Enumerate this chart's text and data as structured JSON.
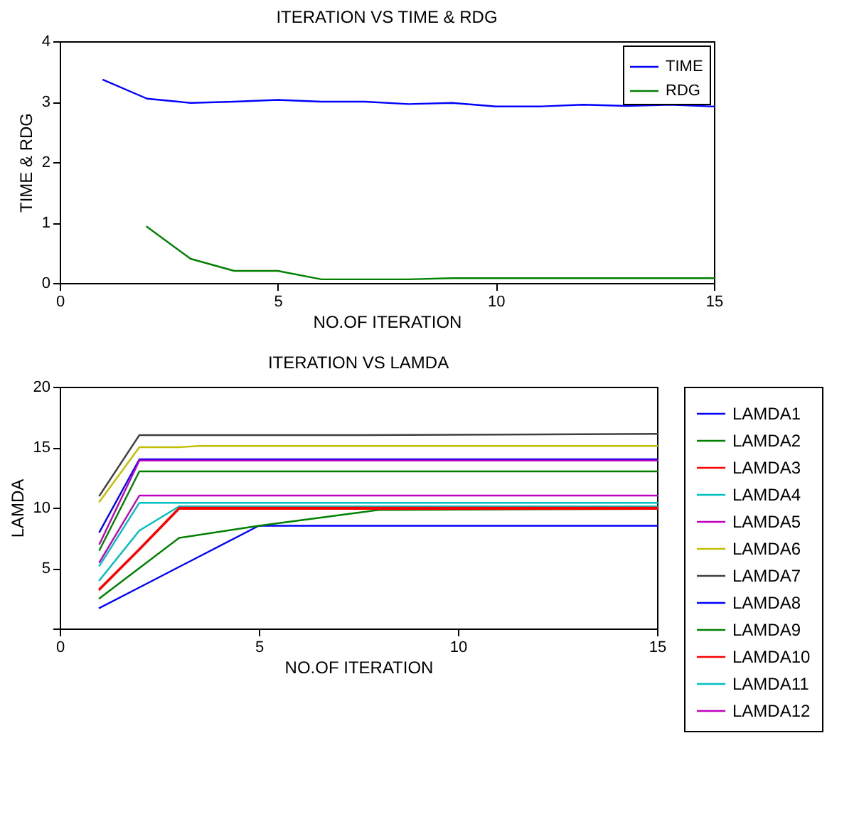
{
  "chart_data": [
    {
      "type": "line",
      "title": "ITERATION VS TIME & RDG",
      "xlabel": "NO.OF ITERATION",
      "ylabel": "TIME & RDG",
      "xlim": [
        0,
        15
      ],
      "xticks": [
        0,
        5,
        10,
        15
      ],
      "ylim": [
        0,
        4
      ],
      "yticks": [
        0,
        1,
        2,
        3,
        4
      ],
      "grid": false,
      "legend": "top right",
      "series": [
        {
          "name": "TIME",
          "color": "#0000ff",
          "x": [
            1,
            2,
            3,
            4,
            5,
            6,
            7,
            8,
            9,
            10,
            11,
            12,
            13,
            14,
            15
          ],
          "values": [
            3.36,
            3.05,
            2.98,
            3.0,
            3.03,
            3.0,
            3.0,
            2.96,
            2.98,
            2.92,
            2.92,
            2.95,
            2.93,
            2.95,
            2.92
          ]
        },
        {
          "name": "RDG",
          "color": "#008000",
          "x": [
            2,
            3,
            4,
            5,
            6,
            7,
            8,
            9,
            10,
            11,
            12,
            13,
            14,
            15
          ],
          "values": [
            0.93,
            0.4,
            0.2,
            0.2,
            0.06,
            0.06,
            0.06,
            0.08,
            0.08,
            0.08,
            0.08,
            0.08,
            0.08,
            0.08
          ]
        }
      ]
    },
    {
      "type": "line",
      "title": "ITERATION VS LAMDA",
      "xlabel": "NO.OF ITERATION",
      "ylabel": "LAMDA",
      "xlim": [
        0,
        15
      ],
      "xticks": [
        0,
        5,
        10,
        15
      ],
      "ylim": [
        0,
        20
      ],
      "yticks": [
        {
          "value": 0,
          "label": null
        },
        5,
        10,
        15,
        20
      ],
      "grid": false,
      "legend": "right",
      "series": [
        {
          "name": "LAMDA1",
          "color": "#0000ff",
          "x": [
            1,
            2,
            3,
            5,
            15
          ],
          "values": [
            1.7,
            3.4,
            5.1,
            8.5,
            8.5
          ]
        },
        {
          "name": "LAMDA2",
          "color": "#008000",
          "x": [
            1,
            2,
            3,
            5,
            8,
            15
          ],
          "values": [
            2.5,
            5,
            7.5,
            8.5,
            9.8,
            9.9
          ]
        },
        {
          "name": "LAMDA3",
          "color": "#ff0000",
          "x": [
            1,
            2,
            3,
            15
          ],
          "values": [
            3.2,
            6.5,
            9.9,
            9.9
          ]
        },
        {
          "name": "LAMDA4",
          "color": "#00bfbf",
          "x": [
            1,
            2,
            3,
            15
          ],
          "values": [
            4,
            8.1,
            10.1,
            10.1
          ]
        },
        {
          "name": "LAMDA5",
          "color": "#bf00bf",
          "x": [
            1,
            2,
            15
          ],
          "values": [
            5.5,
            11,
            11
          ]
        },
        {
          "name": "LAMDA6",
          "color": "#bfbf00",
          "x": [
            1,
            2,
            3,
            3.5,
            15
          ],
          "values": [
            10.5,
            15,
            15,
            15.1,
            15.1
          ]
        },
        {
          "name": "LAMDA7",
          "color": "#404040",
          "x": [
            1,
            2,
            7.5,
            15
          ],
          "values": [
            11,
            16,
            16,
            16.1
          ]
        },
        {
          "name": "LAMDA8",
          "color": "#0000ff",
          "x": [
            1,
            2,
            15
          ],
          "values": [
            8,
            14,
            14
          ]
        },
        {
          "name": "LAMDA9",
          "color": "#008000",
          "x": [
            1,
            2,
            15
          ],
          "values": [
            6.5,
            13,
            13
          ]
        },
        {
          "name": "LAMDA10",
          "color": "#ff0000",
          "x": [
            1,
            2,
            3,
            15
          ],
          "values": [
            3.3,
            6.6,
            10,
            10
          ]
        },
        {
          "name": "LAMDA11",
          "color": "#00bfbf",
          "x": [
            1,
            2,
            15
          ],
          "values": [
            5.2,
            10.4,
            10.4
          ]
        },
        {
          "name": "LAMDA12",
          "color": "#bf00bf",
          "x": [
            1,
            2,
            15
          ],
          "values": [
            7,
            13.9,
            13.9
          ]
        }
      ]
    }
  ]
}
